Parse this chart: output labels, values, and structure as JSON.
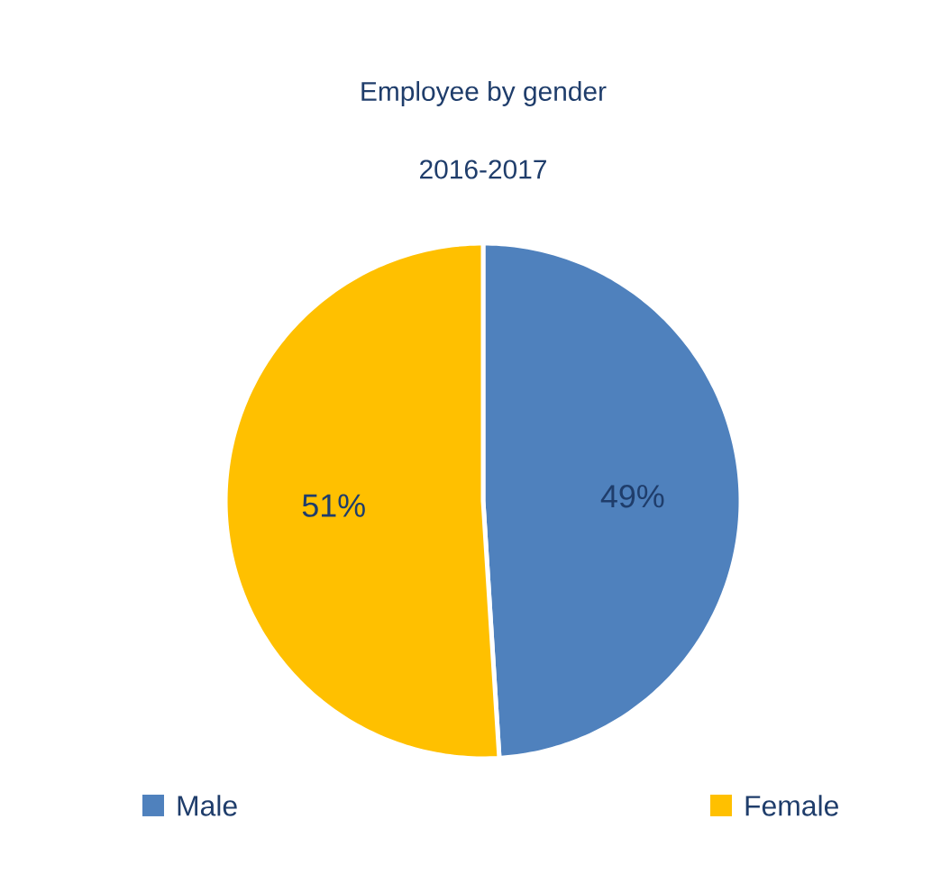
{
  "chart_data": {
    "type": "pie",
    "title": "Employee by gender",
    "subtitle": "2016-2017",
    "categories": [
      "Male",
      "Female"
    ],
    "values": [
      49,
      51
    ],
    "value_labels": [
      "49%",
      "51%"
    ],
    "colors": [
      "#4f81bd",
      "#ffc000"
    ],
    "legend": "bottom"
  }
}
